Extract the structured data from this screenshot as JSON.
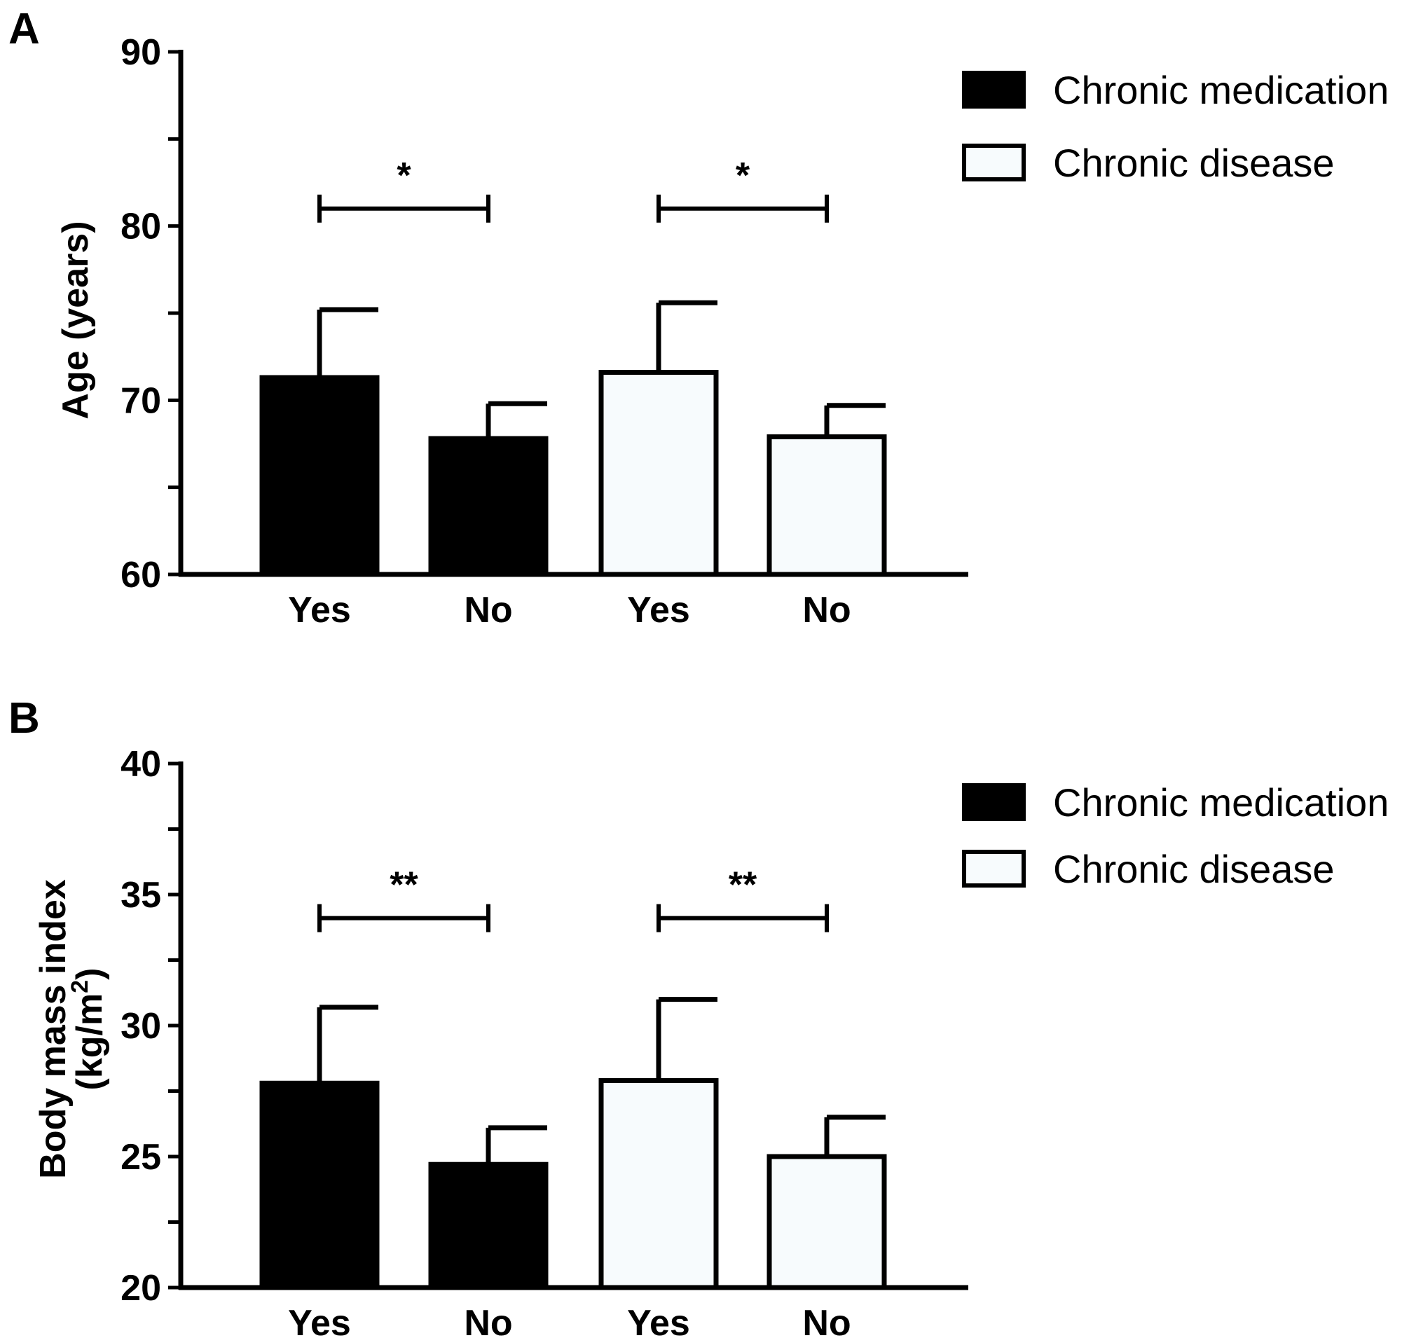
{
  "colors": {
    "medication_fill": "#000000",
    "disease_fill": "#f7fbfd",
    "stroke": "#000000",
    "background": "#ffffff"
  },
  "chart_data": [
    {
      "panel": "A",
      "type": "bar",
      "ylabel": "Age (years)",
      "ylim": [
        60,
        90
      ],
      "yticks": [
        60,
        70,
        80,
        90
      ],
      "minor_tick_step": 5,
      "categories": [
        "Yes",
        "No",
        "Yes",
        "No"
      ],
      "series": [
        {
          "name": "Chronic medication",
          "positions": [
            0,
            1
          ],
          "values": [
            71.3,
            67.8
          ],
          "errors": [
            3.9,
            2.0
          ]
        },
        {
          "name": "Chronic disease",
          "positions": [
            2,
            3
          ],
          "values": [
            71.6,
            67.9
          ],
          "errors": [
            4.0,
            1.8
          ]
        }
      ],
      "significance": [
        {
          "from": 0,
          "to": 1,
          "y": 81,
          "label": "*"
        },
        {
          "from": 2,
          "to": 3,
          "y": 81,
          "label": "*"
        }
      ],
      "legend": [
        "Chronic medication",
        "Chronic disease"
      ],
      "legend_position": "top-right"
    },
    {
      "panel": "B",
      "type": "bar",
      "ylabel_line1": "Body mass index",
      "ylabel_line2": "(kg/m",
      "ylabel_sup": "2",
      "ylabel_close": ")",
      "ylim": [
        20,
        40
      ],
      "yticks": [
        20,
        25,
        30,
        35,
        40
      ],
      "minor_tick_step": 2.5,
      "categories": [
        "Yes",
        "No",
        "Yes",
        "No"
      ],
      "series": [
        {
          "name": "Chronic medication",
          "positions": [
            0,
            1
          ],
          "values": [
            27.8,
            24.7
          ],
          "errors": [
            2.9,
            1.4
          ]
        },
        {
          "name": "Chronic disease",
          "positions": [
            2,
            3
          ],
          "values": [
            27.9,
            25.0
          ],
          "errors": [
            3.1,
            1.5
          ]
        }
      ],
      "significance": [
        {
          "from": 0,
          "to": 1,
          "y": 34.1,
          "label": "**"
        },
        {
          "from": 2,
          "to": 3,
          "y": 34.1,
          "label": "**"
        }
      ],
      "legend": [
        "Chronic medication",
        "Chronic disease"
      ],
      "legend_position": "top-right"
    }
  ]
}
